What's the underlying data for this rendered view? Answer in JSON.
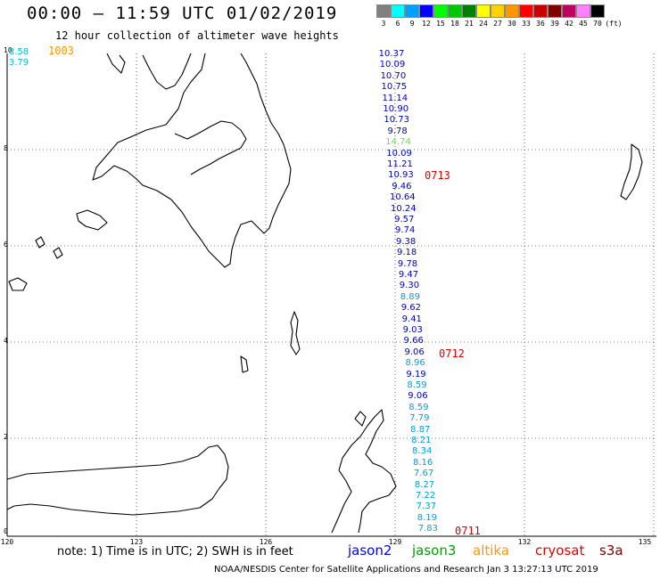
{
  "header": {
    "title": "00:00 – 11:59 UTC 01/02/2019",
    "subtitle": "12 hour collection of altimeter wave heights"
  },
  "legend": {
    "unit": "(ft)",
    "bins": [
      {
        "label": "3",
        "color": "#808080"
      },
      {
        "label": "6",
        "color": "#00ffff"
      },
      {
        "label": "9",
        "color": "#00a0ff"
      },
      {
        "label": "12",
        "color": "#0000ff"
      },
      {
        "label": "15",
        "color": "#00ff00"
      },
      {
        "label": "18",
        "color": "#00c800"
      },
      {
        "label": "21",
        "color": "#008000"
      },
      {
        "label": "24",
        "color": "#ffff00"
      },
      {
        "label": "27",
        "color": "#ffd200"
      },
      {
        "label": "30",
        "color": "#ff9600"
      },
      {
        "label": "33",
        "color": "#ff0000"
      },
      {
        "label": "36",
        "color": "#c80000"
      },
      {
        "label": "39",
        "color": "#800000"
      },
      {
        "label": "42",
        "color": "#c00060"
      },
      {
        "label": "45",
        "color": "#ff80ff"
      },
      {
        "label": "70",
        "color": "#000000"
      }
    ]
  },
  "map": {
    "lat_labels": [
      "10",
      "8",
      "6",
      "4",
      "2",
      "0"
    ],
    "lon_labels": [
      "120",
      "123",
      "126",
      "129",
      "132",
      "135"
    ],
    "top_left_readings": [
      {
        "text": "3.58",
        "color": "#00c0e0"
      },
      {
        "text": "3.79",
        "color": "#00c0e0"
      },
      {
        "text": "1003",
        "color": "#ff9600"
      }
    ],
    "track_readings": [
      {
        "text": "10.37",
        "color": "#0000c0"
      },
      {
        "text": "10.09",
        "color": "#0000c0"
      },
      {
        "text": "10.70",
        "color": "#0000c0"
      },
      {
        "text": "10.75",
        "color": "#0000c0"
      },
      {
        "text": "11.14",
        "color": "#0000c0"
      },
      {
        "text": "10.90",
        "color": "#0000c0"
      },
      {
        "text": "10.73",
        "color": "#0000c0"
      },
      {
        "text": "9.78",
        "color": "#0000c0"
      },
      {
        "text": "14.74",
        "color": "#60e060"
      },
      {
        "text": "10.09",
        "color": "#0000c0"
      },
      {
        "text": "11.21",
        "color": "#0000c0"
      },
      {
        "text": "10.93",
        "color": "#0000c0"
      },
      {
        "text": "9.46",
        "color": "#0000c0"
      },
      {
        "text": "10.64",
        "color": "#0000c0"
      },
      {
        "text": "10.24",
        "color": "#0000c0"
      },
      {
        "text": "9.57",
        "color": "#0000c0"
      },
      {
        "text": "9.74",
        "color": "#0000c0"
      },
      {
        "text": "9.38",
        "color": "#0000c0"
      },
      {
        "text": "9.18",
        "color": "#0000c0"
      },
      {
        "text": "9.78",
        "color": "#0000c0"
      },
      {
        "text": "9.47",
        "color": "#0000c0"
      },
      {
        "text": "9.30",
        "color": "#0000c0"
      },
      {
        "text": "8.89",
        "color": "#00a0e0"
      },
      {
        "text": "9.62",
        "color": "#0000c0"
      },
      {
        "text": "9.41",
        "color": "#0000c0"
      },
      {
        "text": "9.03",
        "color": "#0000c0"
      },
      {
        "text": "9.66",
        "color": "#0000c0"
      },
      {
        "text": "9.06",
        "color": "#0000c0"
      },
      {
        "text": "8.96",
        "color": "#00a0e0"
      },
      {
        "text": "9.19",
        "color": "#0000c0"
      },
      {
        "text": "8.59",
        "color": "#00a0e0"
      },
      {
        "text": "9.06",
        "color": "#0000c0"
      },
      {
        "text": "8.59",
        "color": "#00a0e0"
      },
      {
        "text": "7.79",
        "color": "#00a0e0"
      },
      {
        "text": "8.87",
        "color": "#00a0e0"
      },
      {
        "text": "8.21",
        "color": "#00a0e0"
      },
      {
        "text": "8.34",
        "color": "#00a0e0"
      },
      {
        "text": "8.16",
        "color": "#00a0e0"
      },
      {
        "text": "7.67",
        "color": "#00a0e0"
      },
      {
        "text": "8.27",
        "color": "#00a0e0"
      },
      {
        "text": "7.22",
        "color": "#00a0e0"
      },
      {
        "text": "7.37",
        "color": "#00a0e0"
      },
      {
        "text": "8.19",
        "color": "#00a0e0"
      },
      {
        "text": "7.83",
        "color": "#00a0e0"
      }
    ],
    "time_marks": [
      {
        "text": "0713",
        "color": "#e00000"
      },
      {
        "text": "0712",
        "color": "#e00000"
      },
      {
        "text": "0711",
        "color": "#e00000"
      }
    ]
  },
  "footer": {
    "note": "note: 1) Time is in UTC; 2) SWH is in feet",
    "satellites": [
      {
        "name": "jason2",
        "color": "#0000ff"
      },
      {
        "name": "jason3",
        "color": "#00a000"
      },
      {
        "name": "altika",
        "color": "#ff9600"
      },
      {
        "name": "cryosat",
        "color": "#e00000"
      },
      {
        "name": "s3a",
        "color": "#800000"
      }
    ],
    "credit": "NOAA/NESDIS Center for Satellite Applications and Research    Jan  3 13:27:13 UTC 2019"
  }
}
